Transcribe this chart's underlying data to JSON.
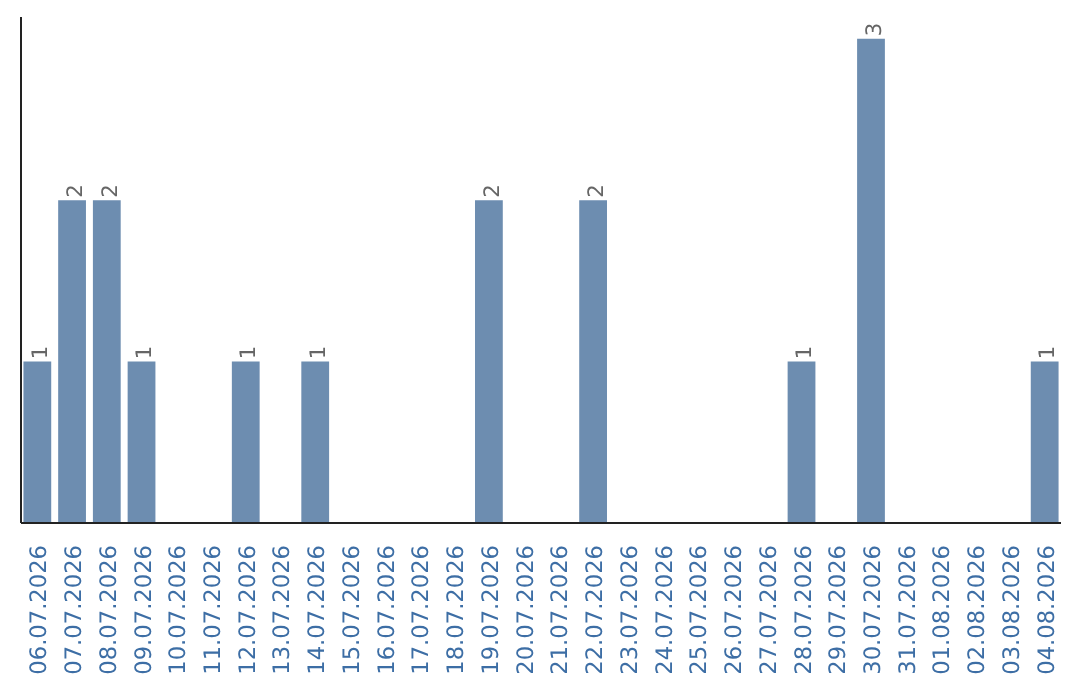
{
  "chart_data": {
    "type": "bar",
    "categories": [
      "06.07.2026",
      "07.07.2026",
      "08.07.2026",
      "09.07.2026",
      "10.07.2026",
      "11.07.2026",
      "12.07.2026",
      "13.07.2026",
      "14.07.2026",
      "15.07.2026",
      "16.07.2026",
      "17.07.2026",
      "18.07.2026",
      "19.07.2026",
      "20.07.2026",
      "21.07.2026",
      "22.07.2026",
      "23.07.2026",
      "24.07.2026",
      "25.07.2026",
      "26.07.2026",
      "27.07.2026",
      "28.07.2026",
      "29.07.2026",
      "30.07.2026",
      "31.07.2026",
      "01.08.2026",
      "02.08.2026",
      "03.08.2026",
      "04.08.2026"
    ],
    "values": [
      1,
      2,
      2,
      1,
      0,
      0,
      1,
      0,
      1,
      0,
      0,
      0,
      0,
      2,
      0,
      0,
      2,
      0,
      0,
      0,
      0,
      0,
      1,
      0,
      3,
      0,
      0,
      0,
      0,
      1
    ],
    "value_labels": [
      "1",
      "2",
      "2",
      "1",
      null,
      null,
      "1",
      null,
      "1",
      null,
      null,
      null,
      null,
      "2",
      null,
      null,
      "2",
      null,
      null,
      null,
      null,
      null,
      "1",
      null,
      "3",
      null,
      null,
      null,
      null,
      "1"
    ],
    "color": "#6d8db0",
    "tick_labels": "x",
    "grid": false
  }
}
